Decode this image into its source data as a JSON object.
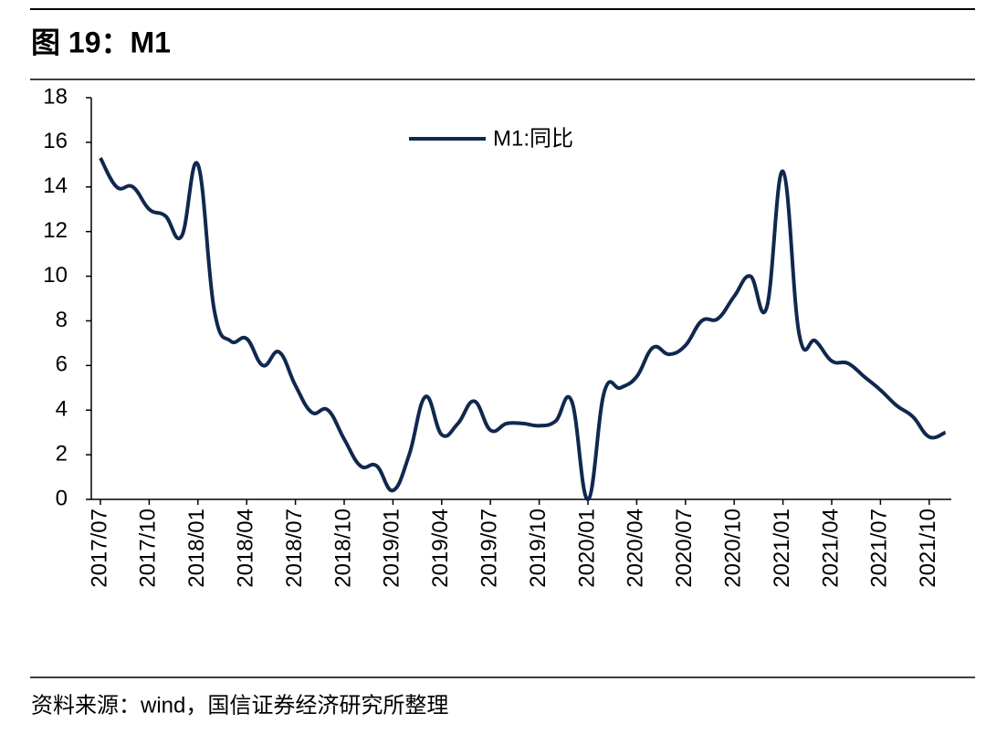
{
  "header": {
    "title": "图 19：M1"
  },
  "chart_data": {
    "type": "line",
    "categories": [
      "2017/07",
      null,
      null,
      "2017/10",
      null,
      null,
      "2018/01",
      null,
      null,
      "2018/04",
      null,
      null,
      "2018/07",
      null,
      null,
      "2018/10",
      null,
      null,
      "2019/01",
      null,
      null,
      "2019/04",
      null,
      null,
      "2019/07",
      null,
      null,
      "2019/10",
      null,
      null,
      "2020/01",
      null,
      null,
      "2020/04",
      null,
      null,
      "2020/07",
      null,
      null,
      "2020/10",
      null,
      null,
      "2021/01",
      null,
      null,
      "2021/04",
      null,
      null,
      "2021/07",
      null,
      null,
      "2021/10",
      null
    ],
    "series": [
      {
        "name": "M1:同比",
        "color": "#10284e",
        "values": [
          15.3,
          14.0,
          14.0,
          13.0,
          12.7,
          11.8,
          15.0,
          8.5,
          7.1,
          7.2,
          6.0,
          6.6,
          5.1,
          3.9,
          4.0,
          2.7,
          1.5,
          1.5,
          0.4,
          2.0,
          4.6,
          2.9,
          3.4,
          4.4,
          3.1,
          3.4,
          3.4,
          3.3,
          3.5,
          4.4,
          0.0,
          4.8,
          5.0,
          5.5,
          6.8,
          6.5,
          6.9,
          8.0,
          8.1,
          9.1,
          10.0,
          8.6,
          14.7,
          7.4,
          7.1,
          6.2,
          6.1,
          5.5,
          4.9,
          4.2,
          3.7,
          2.8,
          3.0
        ]
      }
    ],
    "ylim": [
      0,
      18
    ],
    "yticks": [
      0,
      2,
      4,
      6,
      8,
      10,
      12,
      14,
      16,
      18
    ],
    "grid": false
  },
  "footer": {
    "source": "资料来源：wind，国信证券经济研究所整理"
  }
}
